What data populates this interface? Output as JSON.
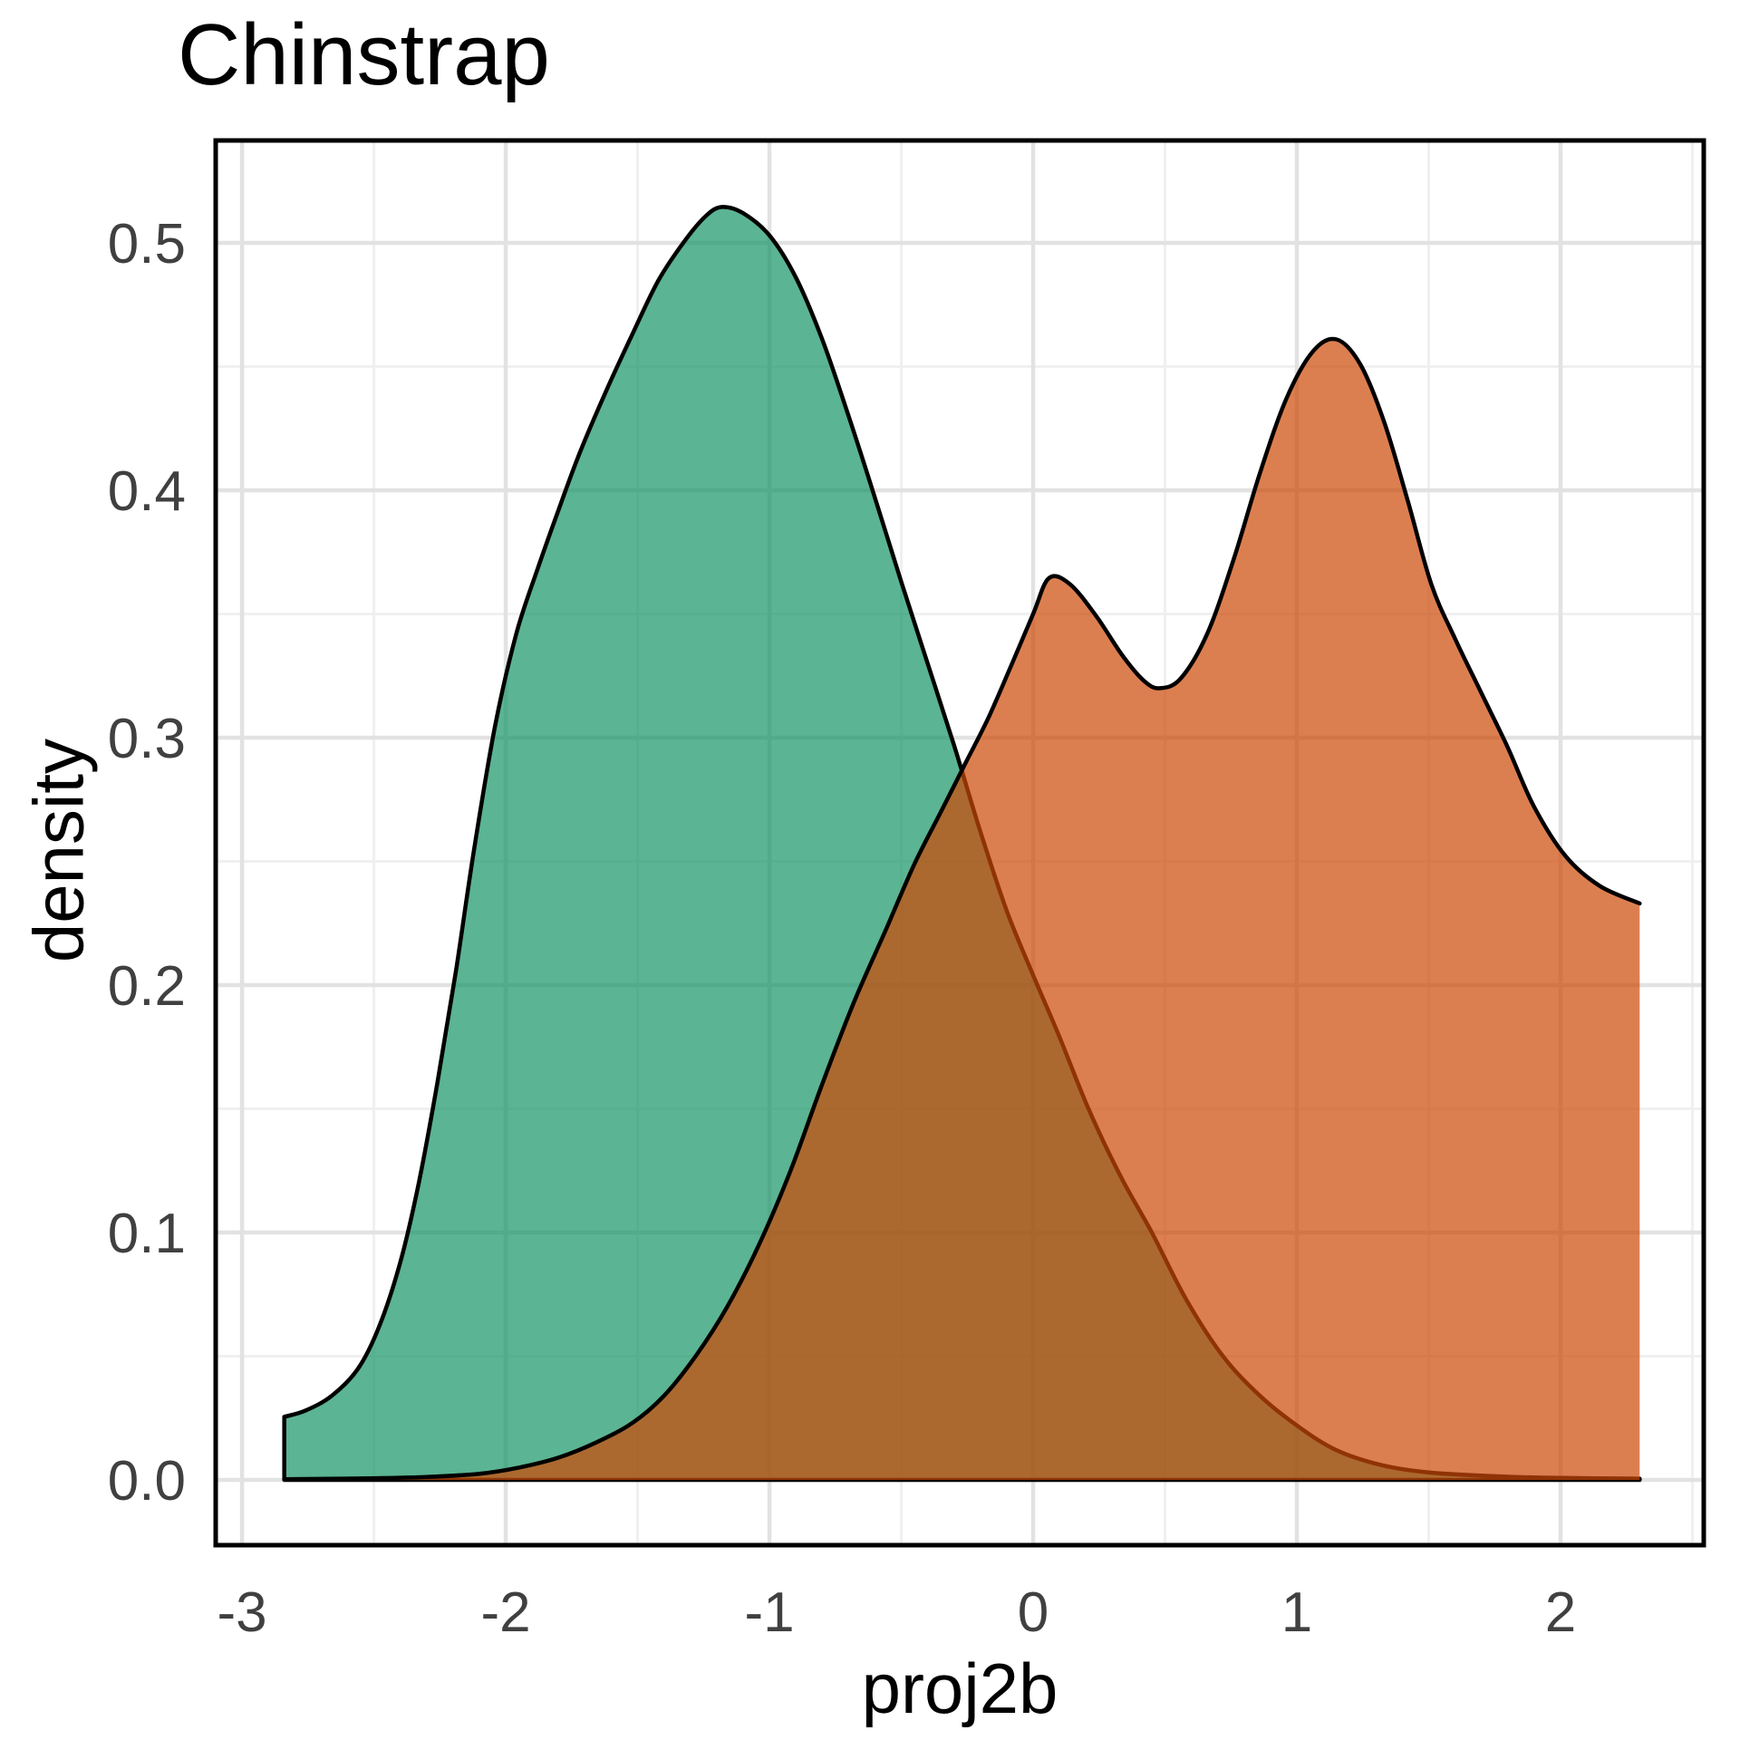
{
  "title": "Chinstrap",
  "chart_data": {
    "type": "area",
    "subtype": "kernel-density",
    "title": "Chinstrap",
    "xlabel": "proj2b",
    "ylabel": "density",
    "xlim": [
      -3.1,
      2.543
    ],
    "ylim": [
      -0.02637,
      0.54139
    ],
    "grid": "major+minor",
    "legend_position": "none",
    "x_major_ticks": [
      -3,
      -2,
      -1,
      0,
      1,
      2
    ],
    "x_tick_labels": [
      "-3",
      "-2",
      "-1",
      "0",
      "1",
      "2"
    ],
    "x_minor_ticks": [
      -2.5,
      -1.5,
      -0.5,
      0.5,
      1.5,
      2.5
    ],
    "y_major_ticks": [
      0.0,
      0.1,
      0.2,
      0.3,
      0.4,
      0.5
    ],
    "y_tick_labels": [
      "0.0",
      "0.1",
      "0.2",
      "0.3",
      "0.4",
      "0.5"
    ],
    "y_minor_ticks": [
      0.05,
      0.15,
      0.25,
      0.35,
      0.45
    ],
    "colors": {
      "green_fill_composited": "#5CB492",
      "orange_fill_composited": "#DC8050",
      "overlap_composited": "#AA6932",
      "outline": "#000000",
      "grid_major": "#E2E2E2",
      "grid_minor": "#EFEFEF",
      "panel_border": "#000000",
      "tick_label": "#404040"
    },
    "series": [
      {
        "name": "green-density",
        "fill_rgba": "rgba(22,148,101,0.7)",
        "stroke": "#000000",
        "domain": [
          -2.84,
          2.3
        ],
        "peak": {
          "x": -1.18,
          "density": 0.5145
        },
        "left_edge_density": 0.0255,
        "points": [
          [
            -2.84,
            0.0255
          ],
          [
            -2.76,
            0.028
          ],
          [
            -2.66,
            0.034
          ],
          [
            -2.56,
            0.045
          ],
          [
            -2.48,
            0.062
          ],
          [
            -2.4,
            0.088
          ],
          [
            -2.33,
            0.12
          ],
          [
            -2.26,
            0.16
          ],
          [
            -2.19,
            0.205
          ],
          [
            -2.12,
            0.255
          ],
          [
            -2.04,
            0.305
          ],
          [
            -1.96,
            0.342
          ],
          [
            -1.88,
            0.368
          ],
          [
            -1.8,
            0.392
          ],
          [
            -1.72,
            0.415
          ],
          [
            -1.62,
            0.44
          ],
          [
            -1.52,
            0.463
          ],
          [
            -1.42,
            0.485
          ],
          [
            -1.32,
            0.501
          ],
          [
            -1.24,
            0.511
          ],
          [
            -1.18,
            0.5145
          ],
          [
            -1.1,
            0.512
          ],
          [
            -1.0,
            0.503
          ],
          [
            -0.9,
            0.486
          ],
          [
            -0.8,
            0.461
          ],
          [
            -0.7,
            0.43
          ],
          [
            -0.6,
            0.397
          ],
          [
            -0.5,
            0.363
          ],
          [
            -0.4,
            0.33
          ],
          [
            -0.3,
            0.297
          ],
          [
            -0.2,
            0.262
          ],
          [
            -0.1,
            0.23
          ],
          [
            0.0,
            0.204
          ],
          [
            0.1,
            0.179
          ],
          [
            0.21,
            0.15
          ],
          [
            0.33,
            0.123
          ],
          [
            0.45,
            0.1
          ],
          [
            0.58,
            0.073
          ],
          [
            0.72,
            0.05
          ],
          [
            0.86,
            0.034
          ],
          [
            1.0,
            0.022
          ],
          [
            1.15,
            0.012
          ],
          [
            1.32,
            0.006
          ],
          [
            1.5,
            0.003
          ],
          [
            1.75,
            0.0015
          ],
          [
            2.0,
            0.0008
          ],
          [
            2.3,
            0.0005
          ]
        ]
      },
      {
        "name": "orange-density",
        "fill_rgba": "rgba(205,72,5,0.7)",
        "stroke": "#000000",
        "domain": [
          -2.84,
          2.3
        ],
        "peaks": [
          {
            "x": 0.06,
            "density": 0.3645
          },
          {
            "x": 1.15,
            "density": 0.461
          }
        ],
        "dip": {
          "x": 0.48,
          "density": 0.32
        },
        "right_edge_density": 0.233,
        "points": [
          [
            -2.84,
            0.0003
          ],
          [
            -2.55,
            0.0006
          ],
          [
            -2.3,
            0.0012
          ],
          [
            -2.1,
            0.0025
          ],
          [
            -1.95,
            0.005
          ],
          [
            -1.8,
            0.009
          ],
          [
            -1.66,
            0.015
          ],
          [
            -1.52,
            0.023
          ],
          [
            -1.4,
            0.034
          ],
          [
            -1.28,
            0.05
          ],
          [
            -1.16,
            0.07
          ],
          [
            -1.04,
            0.095
          ],
          [
            -0.92,
            0.125
          ],
          [
            -0.8,
            0.16
          ],
          [
            -0.68,
            0.193
          ],
          [
            -0.56,
            0.222
          ],
          [
            -0.45,
            0.249
          ],
          [
            -0.35,
            0.27
          ],
          [
            -0.26,
            0.289
          ],
          [
            -0.17,
            0.308
          ],
          [
            -0.08,
            0.33
          ],
          [
            0.0,
            0.35
          ],
          [
            0.06,
            0.3645
          ],
          [
            0.14,
            0.362
          ],
          [
            0.24,
            0.349
          ],
          [
            0.34,
            0.333
          ],
          [
            0.42,
            0.323
          ],
          [
            0.48,
            0.32
          ],
          [
            0.56,
            0.324
          ],
          [
            0.66,
            0.342
          ],
          [
            0.76,
            0.372
          ],
          [
            0.86,
            0.407
          ],
          [
            0.96,
            0.437
          ],
          [
            1.06,
            0.456
          ],
          [
            1.15,
            0.461
          ],
          [
            1.24,
            0.451
          ],
          [
            1.33,
            0.428
          ],
          [
            1.42,
            0.396
          ],
          [
            1.51,
            0.362
          ],
          [
            1.6,
            0.34
          ],
          [
            1.7,
            0.318
          ],
          [
            1.8,
            0.296
          ],
          [
            1.9,
            0.272
          ],
          [
            2.02,
            0.252
          ],
          [
            2.15,
            0.24
          ],
          [
            2.3,
            0.233
          ]
        ]
      }
    ]
  }
}
